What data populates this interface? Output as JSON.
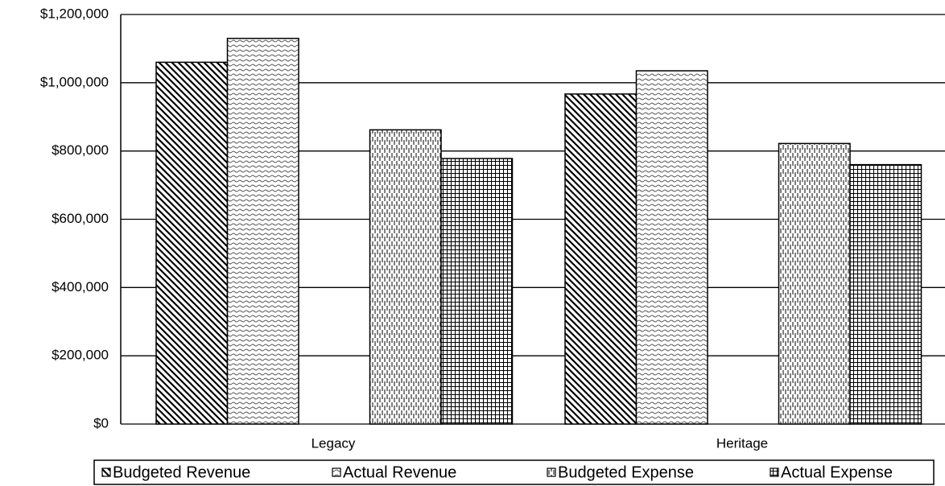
{
  "chart_data": {
    "type": "bar",
    "categories": [
      "Legacy",
      "Heritage"
    ],
    "series": [
      {
        "name": "Budgeted Revenue",
        "values": [
          1060000,
          967000
        ]
      },
      {
        "name": "Actual Revenue",
        "values": [
          1130000,
          1035000
        ]
      },
      {
        "name": "Budgeted Expense",
        "values": [
          862000,
          822000
        ]
      },
      {
        "name": "Actual Expense",
        "values": [
          778000,
          760000
        ]
      }
    ],
    "ylim": [
      0,
      1200000
    ],
    "yticks": [
      {
        "value": 0,
        "label": "$0"
      },
      {
        "value": 200000,
        "label": "$200,000"
      },
      {
        "value": 400000,
        "label": "$400,000"
      },
      {
        "value": 600000,
        "label": "$600,000"
      },
      {
        "value": 800000,
        "label": "$800,000"
      },
      {
        "value": 1000000,
        "label": "$1,000,000"
      },
      {
        "value": 1200000,
        "label": "$1,200,000"
      }
    ],
    "grid": true,
    "legend": "bottom"
  }
}
